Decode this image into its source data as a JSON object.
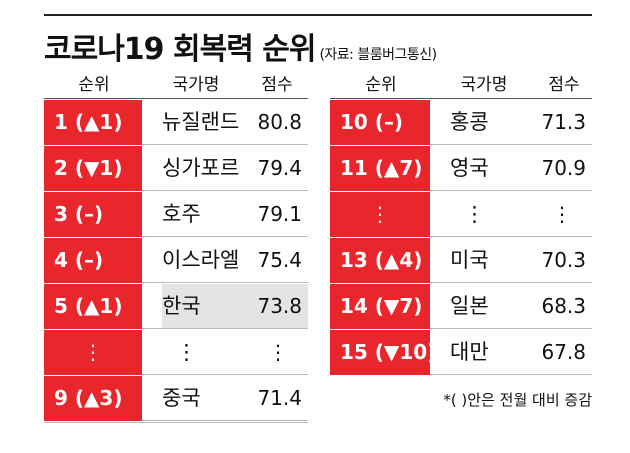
{
  "title": "코로나19 회복력 순위",
  "source": "(자료: 블룸버그통신)",
  "headers": [
    "순위",
    "국가명",
    "점수"
  ],
  "left_rows": [
    {
      "rank": "1 (▲1)",
      "country": "뉴질랜드",
      "score": "80.8"
    },
    {
      "rank": "2 (▼1)",
      "country": "싱가포르",
      "score": "79.4"
    },
    {
      "rank": "3 (–)",
      "country": "호주",
      "score": "79.1"
    },
    {
      "rank": "4 (–)",
      "country": "이스라엘",
      "score": "75.4"
    },
    {
      "rank": "5 (▲1)",
      "country": "한국",
      "score": "73.8",
      "highlight": true
    },
    {
      "rank": "⋮",
      "country": "⋮",
      "score": "⋮"
    },
    {
      "rank": "9 (▲3)",
      "country": "중국",
      "score": "71.4"
    }
  ],
  "right_rows": [
    {
      "rank": "10 (–)",
      "country": "홍콩",
      "score": "71.3"
    },
    {
      "rank": "11 (▲7)",
      "country": "영국",
      "score": "70.9"
    },
    {
      "rank": "⋮",
      "country": "⋮",
      "score": "⋮"
    },
    {
      "rank": "13 (▲4)",
      "country": "미국",
      "score": "70.3"
    },
    {
      "rank": "14 (▼7)",
      "country": "일본",
      "score": "68.3"
    },
    {
      "rank": "15 (▼10)",
      "country": "대만",
      "score": "67.8"
    }
  ],
  "note": "*(  )안은 전월 대비 증감",
  "colors": {
    "rank_bg": "#e8262b",
    "highlight_bg": "#e4e4e4"
  },
  "chart_data": {
    "type": "table",
    "title": "코로나19 회복력 순위",
    "columns": [
      "순위",
      "국가명",
      "점수"
    ],
    "rows": [
      [
        "1 (▲1)",
        "뉴질랜드",
        80.8
      ],
      [
        "2 (▼1)",
        "싱가포르",
        79.4
      ],
      [
        "3 (–)",
        "호주",
        79.1
      ],
      [
        "4 (–)",
        "이스라엘",
        75.4
      ],
      [
        "5 (▲1)",
        "한국",
        73.8
      ],
      [
        "9 (▲3)",
        "중국",
        71.4
      ],
      [
        "10 (–)",
        "홍콩",
        71.3
      ],
      [
        "11 (▲7)",
        "영국",
        70.9
      ],
      [
        "13 (▲4)",
        "미국",
        70.3
      ],
      [
        "14 (▼7)",
        "일본",
        68.3
      ],
      [
        "15 (▼10)",
        "대만",
        67.8
      ]
    ]
  }
}
